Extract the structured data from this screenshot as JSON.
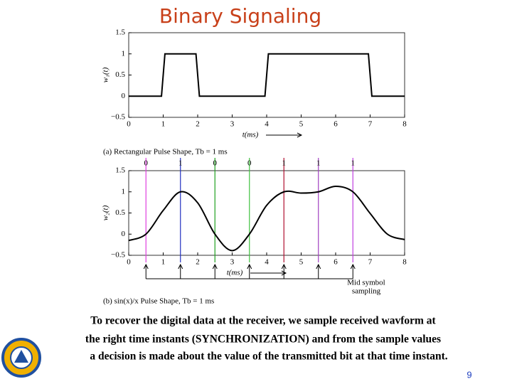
{
  "title": "Binary Signaling",
  "chart_data": [
    {
      "type": "line",
      "x_label": "t(ms)",
      "y_label": "w₁(t)",
      "caption": "(a) Rectangular Pulse Shape, Tb = 1 ms",
      "xlim": [
        0,
        8
      ],
      "ylim": [
        -0.5,
        1.5
      ],
      "xticks": [
        0,
        1,
        2,
        3,
        4,
        5,
        6,
        7,
        8
      ],
      "yticks": [
        {
          "value": -0.5,
          "label": "−0.5"
        },
        0,
        0.5,
        1,
        1.5
      ],
      "smooth": false,
      "color": "#000000",
      "x": [
        0,
        0.95,
        1.05,
        1.95,
        2.05,
        3.95,
        4.05,
        6.95,
        7.05,
        8
      ],
      "values": [
        0,
        0,
        1,
        1,
        0,
        0,
        1,
        1,
        0,
        0
      ]
    },
    {
      "type": "line",
      "x_label": "t(ms)",
      "y_label": "w₂(t)",
      "caption": "(b) sin(x)/x Pulse Shape, Tb = 1 ms",
      "xlim": [
        0,
        8
      ],
      "ylim": [
        -0.5,
        1.5
      ],
      "xticks": [
        0,
        1,
        2,
        3,
        4,
        5,
        6,
        7,
        8
      ],
      "yticks": [
        {
          "value": -0.5,
          "label": "−0.5"
        },
        0,
        0.5,
        1,
        1.5
      ],
      "smooth": true,
      "color": "#000000",
      "x": [
        0,
        0.5,
        1,
        1.5,
        2,
        2.5,
        3,
        3.5,
        4,
        4.5,
        5,
        5.5,
        6,
        6.5,
        7,
        7.5,
        8
      ],
      "values": [
        -0.15,
        0,
        0.56,
        1,
        0.74,
        0,
        -0.39,
        0,
        0.68,
        1,
        0.97,
        1,
        1.13,
        1,
        0.49,
        0,
        -0.13
      ],
      "samples": {
        "x": [
          0.5,
          1.5,
          2.5,
          3.5,
          4.5,
          5.5,
          6.5
        ],
        "labels": [
          "0",
          "1",
          "0",
          "0",
          "1",
          "1",
          "1"
        ],
        "colors": [
          "#e040e0",
          "#2030c0",
          "#20a020",
          "#40c040",
          "#b01030",
          "#a040c0",
          "#c040e0"
        ]
      },
      "annotation": [
        "Mid symbol",
        "sampling"
      ]
    }
  ],
  "body": [
    "To recover the digital data at the receiver, we sample received wavform at",
    "the right time instants (SYNCHRONIZATION) and from the sample values",
    "a decision is made about the value of the transmitted bit at that time instant."
  ],
  "page_number": "9"
}
